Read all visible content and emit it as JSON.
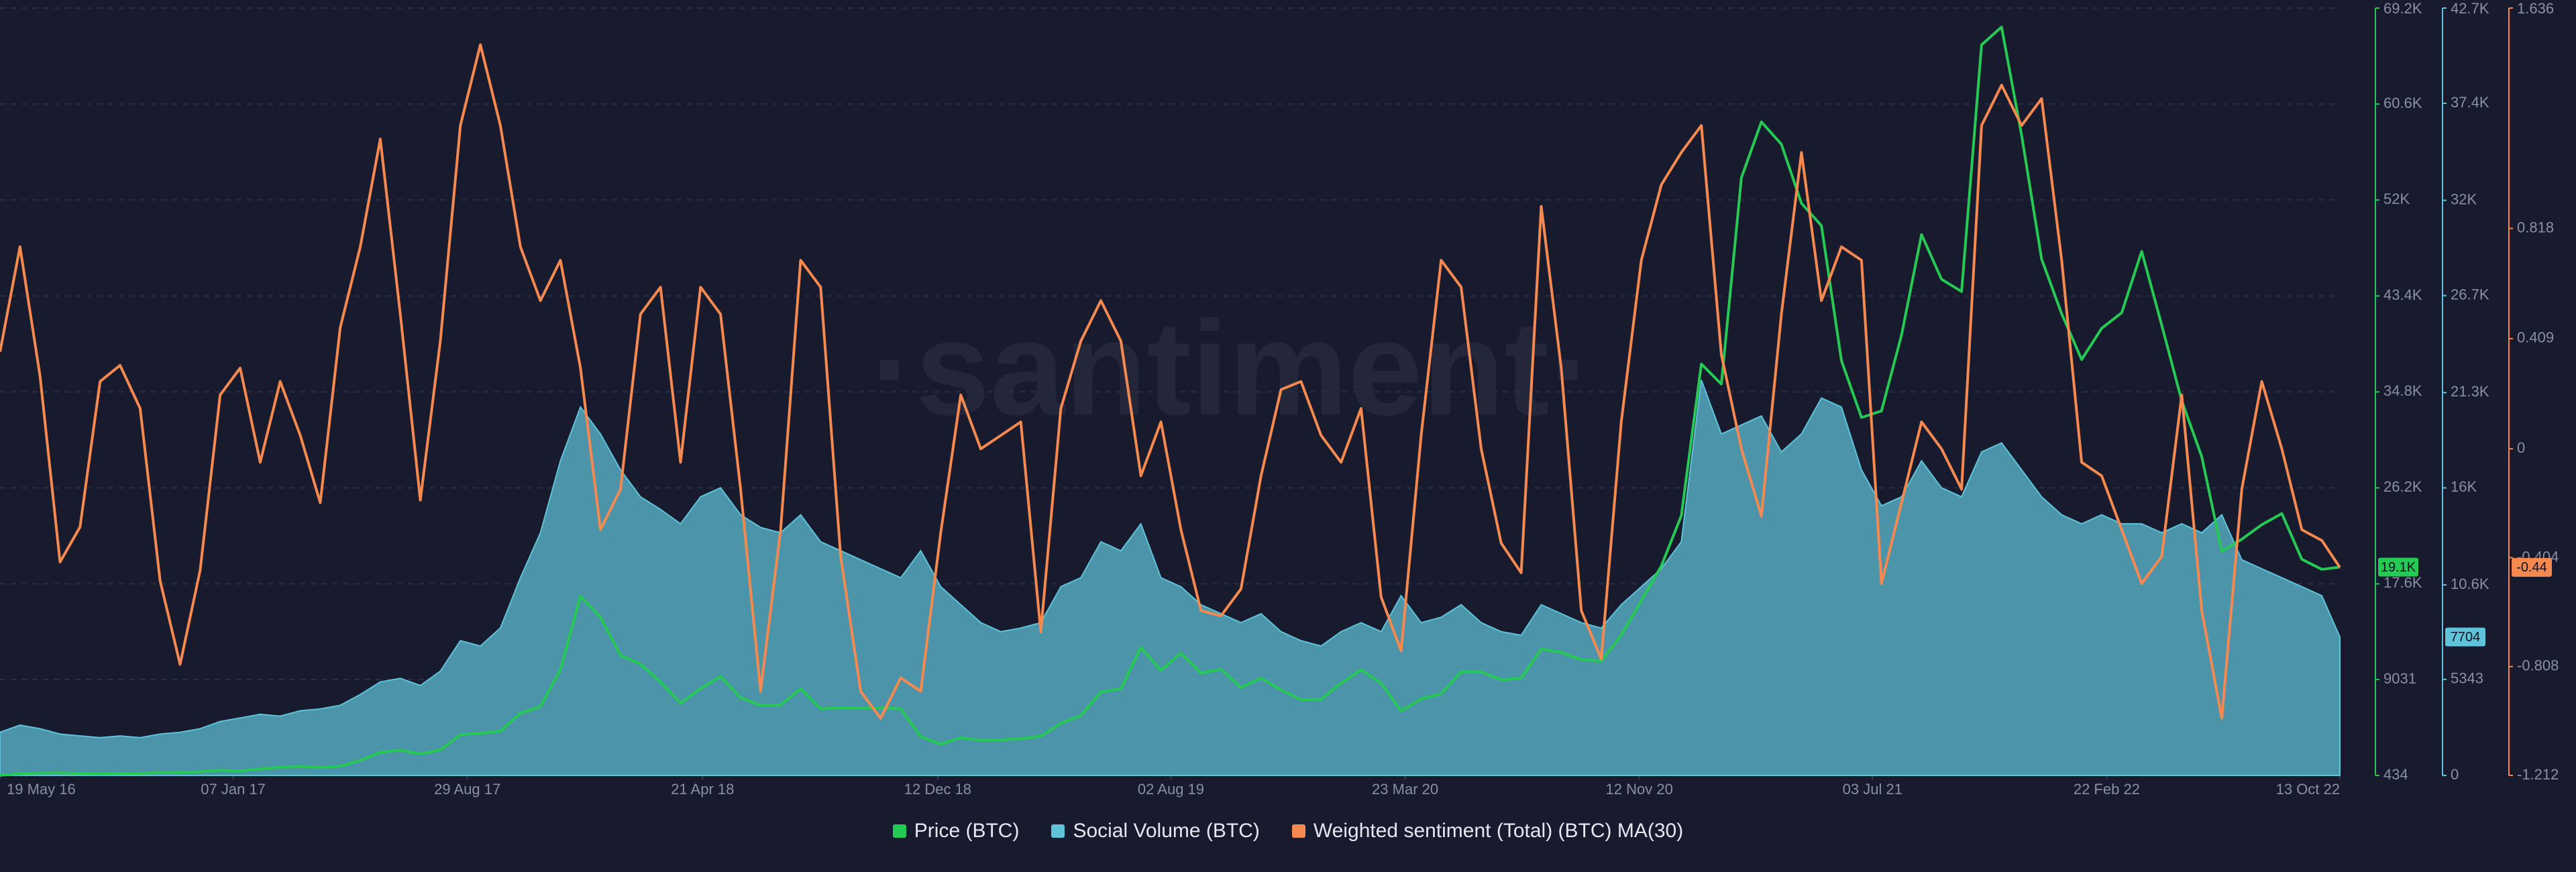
{
  "chart_data": {
    "type": "line",
    "watermark": "·santiment·",
    "grid": true,
    "legend": "bottom",
    "x": [
      "2016-05-19",
      "2016-06-08",
      "2016-06-28",
      "2016-07-18",
      "2016-08-07",
      "2016-08-27",
      "2016-09-16",
      "2016-10-06",
      "2016-10-26",
      "2016-11-15",
      "2016-12-05",
      "2016-12-25",
      "2017-01-14",
      "2017-02-03",
      "2017-02-23",
      "2017-03-15",
      "2017-04-04",
      "2017-04-24",
      "2017-05-14",
      "2017-06-03",
      "2017-06-23",
      "2017-07-13",
      "2017-08-02",
      "2017-08-22",
      "2017-09-11",
      "2017-10-01",
      "2017-10-21",
      "2017-11-10",
      "2017-11-30",
      "2017-12-20",
      "2018-01-09",
      "2018-01-29",
      "2018-02-18",
      "2018-03-10",
      "2018-03-30",
      "2018-04-19",
      "2018-05-09",
      "2018-05-29",
      "2018-06-18",
      "2018-07-08",
      "2018-07-28",
      "2018-08-17",
      "2018-09-06",
      "2018-09-26",
      "2018-10-16",
      "2018-11-05",
      "2018-11-25",
      "2018-12-15",
      "2019-01-04",
      "2019-01-24",
      "2019-02-13",
      "2019-03-05",
      "2019-03-25",
      "2019-04-14",
      "2019-05-04",
      "2019-05-24",
      "2019-06-13",
      "2019-07-03",
      "2019-07-23",
      "2019-08-12",
      "2019-09-01",
      "2019-09-21",
      "2019-10-11",
      "2019-10-31",
      "2019-11-20",
      "2019-12-10",
      "2019-12-30",
      "2020-01-19",
      "2020-02-08",
      "2020-02-28",
      "2020-03-19",
      "2020-04-08",
      "2020-04-28",
      "2020-05-18",
      "2020-06-07",
      "2020-06-27",
      "2020-07-17",
      "2020-08-06",
      "2020-08-26",
      "2020-09-15",
      "2020-10-05",
      "2020-10-25",
      "2020-11-14",
      "2020-12-04",
      "2020-12-24",
      "2021-01-13",
      "2021-02-02",
      "2021-02-22",
      "2021-03-14",
      "2021-04-03",
      "2021-04-23",
      "2021-05-13",
      "2021-06-02",
      "2021-06-22",
      "2021-07-12",
      "2021-08-01",
      "2021-08-21",
      "2021-09-10",
      "2021-09-30",
      "2021-10-20",
      "2021-11-09",
      "2021-11-29",
      "2021-12-19",
      "2022-01-08",
      "2022-01-28",
      "2022-02-17",
      "2022-03-09",
      "2022-03-29",
      "2022-04-18",
      "2022-05-08",
      "2022-05-28",
      "2022-06-17",
      "2022-07-07",
      "2022-07-27",
      "2022-08-16",
      "2022-09-05",
      "2022-09-25",
      "2022-10-13"
    ],
    "xlim": [
      "2016-05-19",
      "2022-10-13"
    ],
    "xticks": [
      {
        "value": "2016-05-19",
        "label": "19 May 16"
      },
      {
        "value": "2017-01-07",
        "label": "07 Jan 17"
      },
      {
        "value": "2017-08-29",
        "label": "29 Aug 17"
      },
      {
        "value": "2018-04-21",
        "label": "21 Apr 18"
      },
      {
        "value": "2018-12-12",
        "label": "12 Dec 18"
      },
      {
        "value": "2019-08-02",
        "label": "02 Aug 19"
      },
      {
        "value": "2020-03-23",
        "label": "23 Mar 20"
      },
      {
        "value": "2020-11-12",
        "label": "12 Nov 20"
      },
      {
        "value": "2021-07-03",
        "label": "03 Jul 21"
      },
      {
        "value": "2022-02-22",
        "label": "22 Feb 22"
      },
      {
        "value": "2022-10-13",
        "label": "13 Oct 22"
      }
    ],
    "ylim": [
      434,
      69200
    ],
    "yticks": [
      434,
      9031,
      {
        "value": 17600,
        "label": "17.6K"
      },
      {
        "value": 26200,
        "label": "26.2K"
      },
      {
        "value": 34800,
        "label": "34.8K"
      },
      {
        "value": 43400,
        "label": "43.4K"
      },
      {
        "value": 52000,
        "label": "52K"
      },
      {
        "value": 60600,
        "label": "60.6K"
      },
      {
        "value": 69200,
        "label": "69.2K"
      }
    ],
    "y2lim": [
      0,
      42700
    ],
    "y2ticks": [
      0,
      5343,
      {
        "value": 10600,
        "label": "10.6K"
      },
      {
        "value": 16000,
        "label": "16K"
      },
      {
        "value": 21300,
        "label": "21.3K"
      },
      {
        "value": 26700,
        "label": "26.7K"
      },
      {
        "value": 32000,
        "label": "32K"
      },
      {
        "value": 37400,
        "label": "37.4K"
      },
      {
        "value": 42700,
        "label": "42.7K"
      }
    ],
    "y3lim": [
      -1.212,
      1.636
    ],
    "y3ticks": [
      -1.212,
      -0.808,
      -0.404,
      0,
      0.409,
      0.818,
      1.636
    ],
    "series": [
      {
        "name": "Price (BTC)",
        "color": "#26c953",
        "axis": "y",
        "last_value_label": "19.1K",
        "values": [
          440,
          580,
          650,
          670,
          590,
          575,
          608,
          612,
          680,
          710,
          760,
          890,
          820,
          1010,
          1170,
          1250,
          1140,
          1250,
          1780,
          2500,
          2700,
          2360,
          2720,
          4080,
          4200,
          4400,
          6000,
          6600,
          9900,
          16500,
          14600,
          11200,
          10400,
          8800,
          6900,
          8200,
          9300,
          7400,
          6700,
          6750,
          8200,
          6400,
          6500,
          6450,
          6500,
          6400,
          3900,
          3250,
          3800,
          3580,
          3600,
          3720,
          3950,
          5100,
          5800,
          7900,
          8200,
          11900,
          9850,
          11400,
          9600,
          9950,
          8300,
          9150,
          8100,
          7220,
          7250,
          8700,
          9900,
          8700,
          6200,
          7300,
          7750,
          9700,
          9700,
          9000,
          9150,
          11750,
          11450,
          10800,
          10700,
          13000,
          16100,
          19200,
          23700,
          37300,
          35500,
          54000,
          59000,
          57000,
          51700,
          49700,
          37600,
          32500,
          33100,
          39900,
          48900,
          44900,
          43800,
          65900,
          67500,
          57800,
          46700,
          41800,
          37700,
          40500,
          41900,
          47400,
          40800,
          34000,
          29000,
          20500,
          21600,
          22900,
          23900,
          19800,
          18900,
          19100
        ]
      },
      {
        "name": "Social Volume (BTC)",
        "color": "#5fc3d9",
        "axis": "y2",
        "last_value_label": "7704",
        "values": [
          2400,
          2800,
          2600,
          2300,
          2200,
          2100,
          2200,
          2100,
          2300,
          2400,
          2600,
          3000,
          3200,
          3400,
          3300,
          3600,
          3700,
          3900,
          4500,
          5200,
          5400,
          5000,
          5800,
          7500,
          7200,
          8200,
          11000,
          13500,
          17500,
          20500,
          19000,
          17000,
          15500,
          14800,
          14000,
          15500,
          16000,
          14500,
          13800,
          13500,
          14500,
          13000,
          12500,
          12000,
          11500,
          11000,
          12500,
          10500,
          9500,
          8500,
          8000,
          8200,
          8500,
          10500,
          11000,
          13000,
          12500,
          14000,
          11000,
          10500,
          9500,
          9000,
          8500,
          9000,
          8000,
          7500,
          7200,
          8000,
          8500,
          8000,
          10000,
          8500,
          8800,
          9500,
          8500,
          8000,
          7800,
          9500,
          9000,
          8500,
          8200,
          9500,
          10500,
          11500,
          13000,
          22000,
          19000,
          19500,
          20000,
          18000,
          19000,
          21000,
          20500,
          17000,
          15000,
          15500,
          17500,
          16000,
          15500,
          18000,
          18500,
          17000,
          15500,
          14500,
          14000,
          14500,
          14000,
          14000,
          13500,
          14000,
          13500,
          14500,
          12000,
          11500,
          11000,
          10500,
          10000,
          7704
        ]
      },
      {
        "name": "Weighted sentiment (Total) (BTC) MA(30)",
        "color": "#f5894f",
        "axis": "y3",
        "last_value_label": "-0.44",
        "values": [
          0.36,
          0.75,
          0.27,
          -0.42,
          -0.29,
          0.25,
          0.31,
          0.15,
          -0.49,
          -0.8,
          -0.45,
          0.2,
          0.3,
          -0.05,
          0.25,
          0.05,
          -0.2,
          0.45,
          0.75,
          1.15,
          0.5,
          -0.19,
          0.4,
          1.2,
          1.5,
          1.2,
          0.75,
          0.55,
          0.7,
          0.3,
          -0.3,
          -0.15,
          0.5,
          0.6,
          -0.05,
          0.6,
          0.5,
          -0.15,
          -0.9,
          -0.3,
          0.7,
          0.6,
          -0.4,
          -0.9,
          -1.0,
          -0.85,
          -0.9,
          -0.31,
          0.2,
          0.0,
          0.05,
          0.1,
          -0.68,
          0.15,
          0.4,
          0.55,
          0.4,
          -0.1,
          0.1,
          -0.3,
          -0.6,
          -0.62,
          -0.52,
          -0.1,
          0.22,
          0.25,
          0.05,
          -0.05,
          0.15,
          -0.55,
          -0.75,
          0.05,
          0.7,
          0.6,
          0.0,
          -0.35,
          -0.46,
          0.9,
          0.3,
          -0.6,
          -0.78,
          0.1,
          0.7,
          0.98,
          1.1,
          1.2,
          0.35,
          0.0,
          -0.25,
          0.5,
          1.1,
          0.55,
          0.75,
          0.7,
          -0.5,
          -0.2,
          0.1,
          0.0,
          -0.15,
          1.2,
          1.35,
          1.2,
          1.3,
          0.7,
          -0.05,
          -0.1,
          -0.3,
          -0.5,
          -0.4,
          0.2,
          -0.6,
          -1.0,
          -0.15,
          0.25,
          0.0,
          -0.3,
          -0.34,
          -0.44
        ]
      }
    ]
  }
}
